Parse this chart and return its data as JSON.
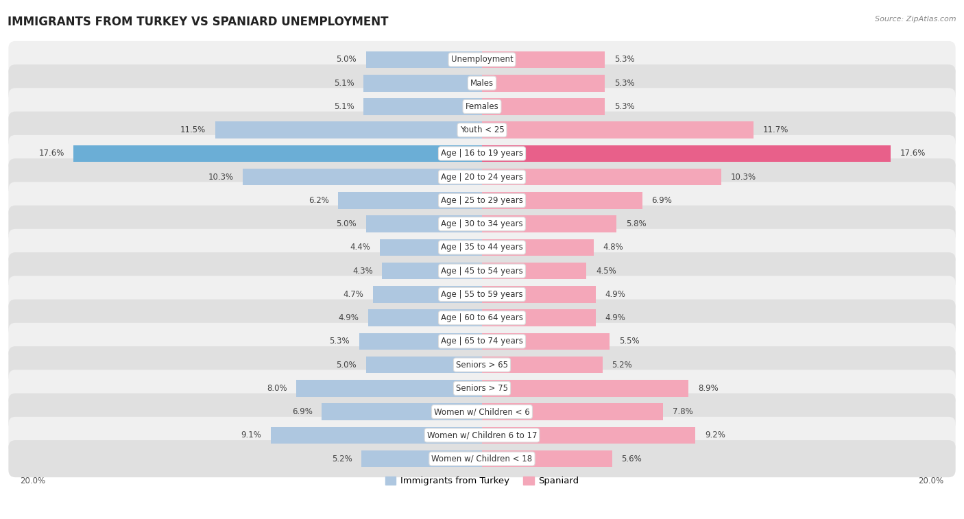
{
  "title": "IMMIGRANTS FROM TURKEY VS SPANIARD UNEMPLOYMENT",
  "source": "Source: ZipAtlas.com",
  "categories": [
    "Unemployment",
    "Males",
    "Females",
    "Youth < 25",
    "Age | 16 to 19 years",
    "Age | 20 to 24 years",
    "Age | 25 to 29 years",
    "Age | 30 to 34 years",
    "Age | 35 to 44 years",
    "Age | 45 to 54 years",
    "Age | 55 to 59 years",
    "Age | 60 to 64 years",
    "Age | 65 to 74 years",
    "Seniors > 65",
    "Seniors > 75",
    "Women w/ Children < 6",
    "Women w/ Children 6 to 17",
    "Women w/ Children < 18"
  ],
  "turkey_values": [
    5.0,
    5.1,
    5.1,
    11.5,
    17.6,
    10.3,
    6.2,
    5.0,
    4.4,
    4.3,
    4.7,
    4.9,
    5.3,
    5.0,
    8.0,
    6.9,
    9.1,
    5.2
  ],
  "spaniard_values": [
    5.3,
    5.3,
    5.3,
    11.7,
    17.6,
    10.3,
    6.9,
    5.8,
    4.8,
    4.5,
    4.9,
    4.9,
    5.5,
    5.2,
    8.9,
    7.8,
    9.2,
    5.6
  ],
  "turkey_color": "#aec7e0",
  "spaniard_color": "#f4a7b9",
  "turkey_highlight_color": "#6baed6",
  "spaniard_highlight_color": "#e8608a",
  "axis_max": 20.0,
  "row_bg_light": "#f0f0f0",
  "row_bg_dark": "#e0e0e0",
  "label_fontsize": 8.5,
  "value_fontsize": 8.5
}
